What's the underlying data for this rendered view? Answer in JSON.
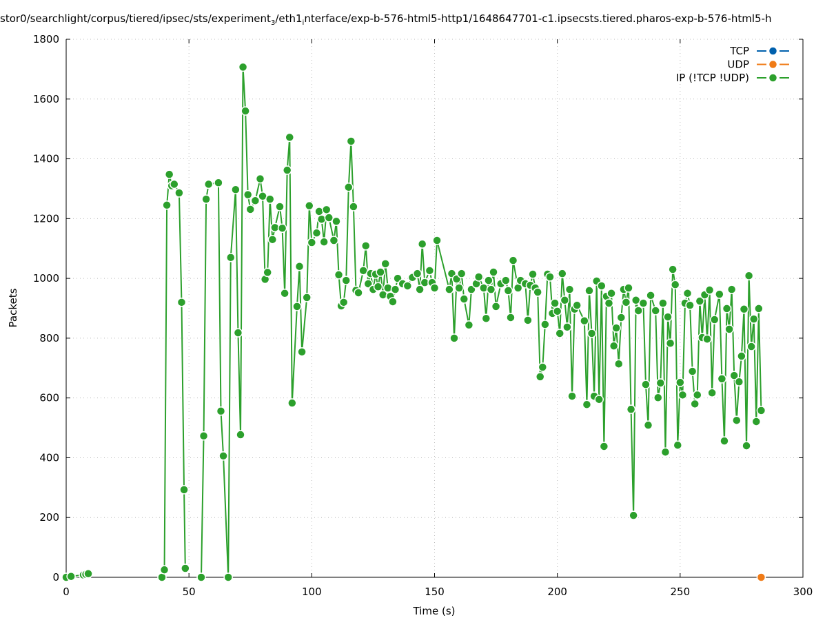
{
  "chart_data": {
    "type": "line",
    "title_parts": [
      "stor0/searchlight/corpus/tiered/ipsec/sts/experiment",
      "3",
      "/eth1",
      "i",
      "nterface/exp-b-576-html5-http1/1648647701-c1.ipsecsts.tiered.pharos-exp-b-576-html5-h"
    ],
    "xlabel": "Time (s)",
    "ylabel": "Packets",
    "xlim": [
      0,
      300
    ],
    "ylim": [
      0,
      1800
    ],
    "xticks": [
      0,
      50,
      100,
      150,
      200,
      250,
      300
    ],
    "yticks": [
      0,
      200,
      400,
      600,
      800,
      1000,
      1200,
      1400,
      1600,
      1800
    ],
    "grid": true,
    "legend_position": "top-right",
    "series": [
      {
        "name": "TCP",
        "color": "#0060ad",
        "x": [],
        "y": []
      },
      {
        "name": "UDP",
        "color": "#f07b17",
        "x": [
          283
        ],
        "y": [
          0
        ]
      },
      {
        "name": "IP (!TCP  !UDP)",
        "color": "#2ca02c",
        "x": [
          0,
          2,
          7,
          8,
          9,
          null,
          39,
          40,
          41,
          42,
          43,
          44,
          46,
          47,
          48,
          48.5,
          null,
          55,
          56,
          57,
          58,
          62,
          63,
          64,
          66,
          67,
          69,
          70,
          71,
          72,
          73,
          74,
          75,
          77,
          79,
          80,
          81,
          82,
          83,
          84,
          85,
          87,
          88,
          89,
          90,
          91,
          92,
          94,
          95,
          96,
          98,
          99,
          100,
          102,
          103,
          104,
          105,
          106,
          107,
          109,
          110,
          111,
          112,
          113,
          114,
          115,
          116,
          117,
          118,
          119,
          121,
          122,
          123,
          124,
          125,
          126,
          127,
          128,
          129,
          130,
          131,
          132,
          133,
          134,
          135,
          137,
          139,
          141,
          143,
          144,
          145,
          146,
          148,
          149,
          150,
          151,
          156,
          157,
          158,
          159,
          160,
          161,
          162,
          164,
          165,
          167,
          168,
          170,
          171,
          172,
          173,
          174,
          175,
          177,
          179,
          180,
          181,
          182,
          184,
          185,
          187,
          188,
          189,
          190,
          191,
          192,
          193,
          194,
          195,
          196,
          197,
          198,
          199,
          200,
          201,
          202,
          203,
          204,
          205,
          206,
          207,
          208,
          211,
          212,
          213,
          214,
          215,
          216,
          217,
          218,
          219,
          220,
          221,
          222,
          223,
          224,
          225,
          226,
          227,
          228,
          229,
          230,
          231,
          232,
          233,
          235,
          236,
          237,
          238,
          240,
          241,
          242,
          243,
          244,
          245,
          246,
          247,
          248,
          249,
          250,
          251,
          252,
          253,
          254,
          255,
          256,
          257,
          258,
          259,
          260,
          261,
          262,
          263,
          264,
          266,
          267,
          268,
          269,
          270,
          271,
          272,
          273,
          274,
          275,
          276,
          277,
          278,
          279,
          280,
          281,
          282,
          283
        ],
        "y": [
          0,
          3,
          8,
          10,
          12,
          null,
          0,
          25,
          1245,
          1348,
          1310,
          1315,
          1286,
          920,
          293,
          30,
          null,
          0,
          473,
          1265,
          1315,
          1320,
          556,
          406,
          0,
          1070,
          1297,
          818,
          477,
          1707,
          1560,
          1280,
          1231,
          1260,
          1333,
          1275,
          997,
          1020,
          1265,
          1130,
          1170,
          1240,
          1168,
          950,
          1362,
          1472,
          583,
          906,
          1040,
          754,
          936,
          1243,
          1120,
          1152,
          1224,
          1198,
          1122,
          1230,
          1203,
          1127,
          1191,
          1012,
          908,
          920,
          993,
          1305,
          1459,
          1240,
          960,
          952,
          1026,
          1109,
          982,
          1016,
          963,
          1014,
          972,
          1021,
          945,
          1049,
          968,
          940,
          922,
          963,
          1000,
          982,
          975,
          1003,
          1016,
          963,
          1115,
          986,
          1026,
          986,
          968,
          1127,
          963,
          1016,
          800,
          998,
          968,
          1016,
          931,
          844,
          963,
          982,
          1005,
          968,
          866,
          993,
          963,
          1021,
          906,
          982,
          993,
          959,
          869,
          1060,
          968,
          993,
          982,
          860,
          977,
          1014,
          968,
          954,
          671,
          703,
          846,
          1014,
          1005,
          883,
          917,
          890,
          816,
          1016,
          927,
          837,
          963,
          606,
          897,
          910,
          858,
          578,
          959,
          816,
          606,
          991,
          595,
          975,
          438,
          940,
          917,
          950,
          774,
          834,
          714,
          869,
          963,
          920,
          968,
          562,
          207,
          927,
          892,
          917,
          645,
          509,
          943,
          892,
          601,
          650,
          917,
          419,
          871,
          783,
          1030,
          979,
          442,
          652,
          610,
          917,
          950,
          910,
          689,
          580,
          610,
          924,
          802,
          945,
          797,
          961,
          617,
          862,
          947,
          664,
          456,
          899,
          830,
          963,
          675,
          525,
          654,
          740,
          897,
          440,
          1009,
          772,
          864,
          521,
          899,
          558
        ]
      }
    ]
  }
}
